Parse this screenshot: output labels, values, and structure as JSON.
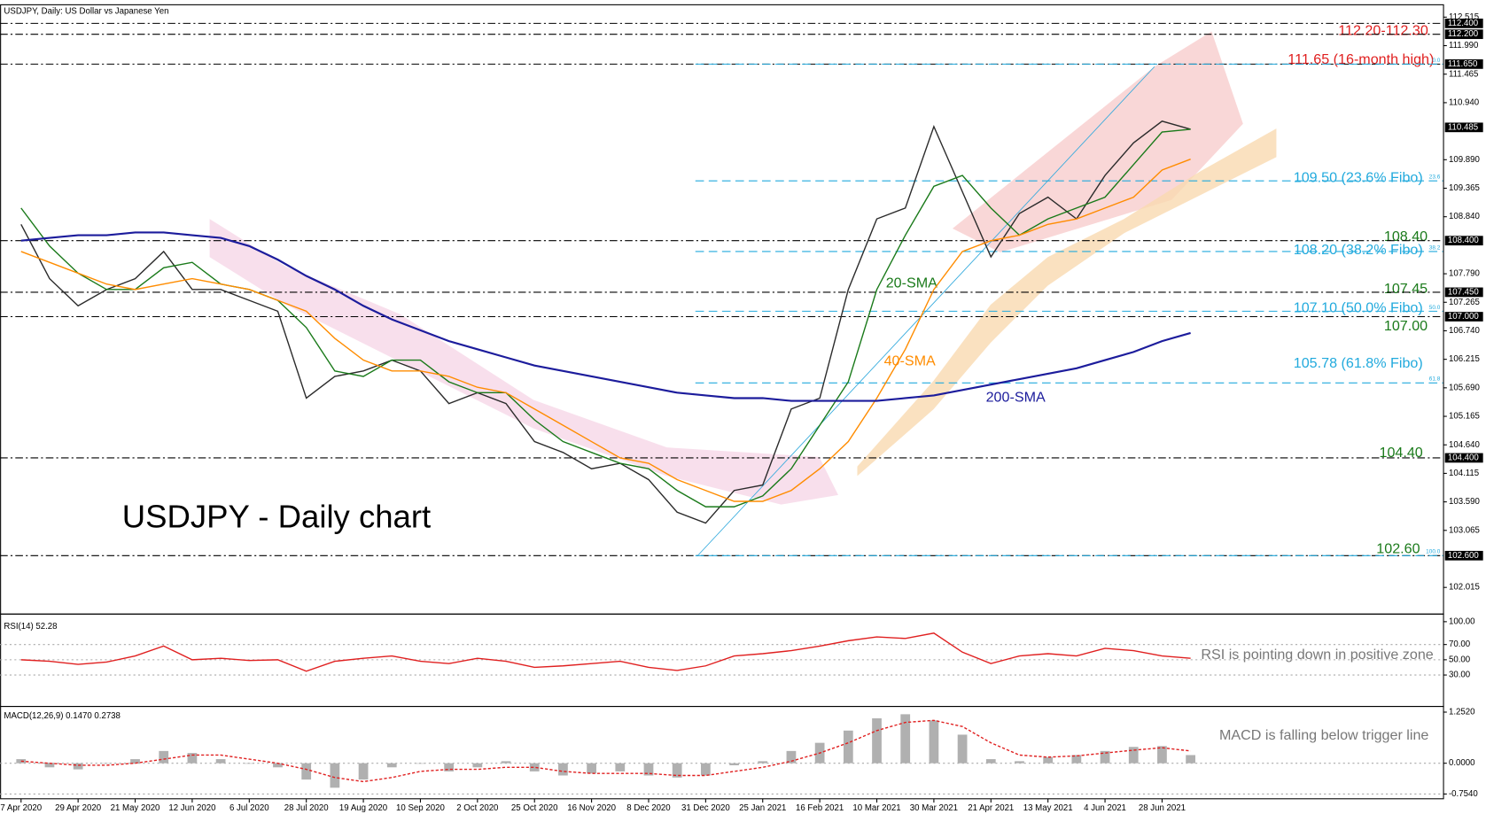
{
  "chart_data": [
    {
      "type": "line",
      "title": "USDJPY, Daily:  US Dollar vs Japanese Yen",
      "categories": [
        "7 Apr 2020",
        null,
        "29 Apr 2020",
        null,
        "21 May 2020",
        null,
        "12 Jun 2020",
        null,
        "6 Jul 2020",
        null,
        "28 Jul 2020",
        null,
        "19 Aug 2020",
        null,
        "10 Sep 2020",
        null,
        "2 Oct 2020",
        null,
        "25 Oct 2020",
        null,
        "16 Nov 2020",
        null,
        "8 Dec 2020",
        null,
        "31 Dec 2020",
        null,
        "25 Jan 2021",
        null,
        "16 Feb 2021",
        null,
        "10 Mar 2021",
        null,
        "30 Mar 2021",
        null,
        "21 Apr 2021",
        null,
        "13 May 2021",
        null,
        "4 Jun 2021",
        null,
        "28 Jun 2021",
        null
      ],
      "series": [
        {
          "color": "#2b2b2b",
          "values": [
            108.7,
            107.7,
            107.2,
            107.5,
            107.7,
            108.2,
            107.5,
            107.5,
            107.3,
            107.1,
            105.5,
            105.9,
            106.0,
            106.2,
            106.0,
            105.4,
            105.6,
            105.4,
            104.7,
            104.5,
            104.2,
            104.3,
            104.0,
            103.4,
            103.2,
            103.8,
            103.9,
            105.3,
            105.5,
            107.5,
            108.8,
            109.0,
            110.5,
            109.3,
            108.1,
            108.9,
            109.2,
            108.8,
            109.6,
            110.2,
            110.6,
            110.45
          ]
        },
        {
          "name": "20-SMA",
          "color": "#1a7a1a",
          "values": [
            109.0,
            108.3,
            107.8,
            107.5,
            107.5,
            107.9,
            108.0,
            107.6,
            107.5,
            107.3,
            106.8,
            106.0,
            105.9,
            106.2,
            106.2,
            105.8,
            105.6,
            105.6,
            105.1,
            104.7,
            104.5,
            104.3,
            104.2,
            103.8,
            103.5,
            103.5,
            103.7,
            104.2,
            105.0,
            105.8,
            107.5,
            108.5,
            109.4,
            109.6,
            109.0,
            108.5,
            108.8,
            109.0,
            109.2,
            109.8,
            110.4,
            110.45
          ]
        },
        {
          "name": "40-SMA",
          "color": "#ff8c00",
          "values": [
            108.2,
            108.0,
            107.8,
            107.6,
            107.5,
            107.6,
            107.7,
            107.6,
            107.5,
            107.3,
            107.1,
            106.6,
            106.2,
            106.0,
            106.0,
            105.9,
            105.7,
            105.6,
            105.3,
            105.0,
            104.7,
            104.4,
            104.3,
            104.0,
            103.8,
            103.6,
            103.6,
            103.8,
            104.2,
            104.7,
            105.5,
            106.4,
            107.5,
            108.2,
            108.4,
            108.5,
            108.7,
            108.8,
            109.0,
            109.2,
            109.7,
            109.9
          ]
        },
        {
          "name": "200-SMA",
          "color": "#1c1c9c",
          "values": [
            108.4,
            108.45,
            108.5,
            108.5,
            108.55,
            108.55,
            108.5,
            108.45,
            108.3,
            108.05,
            107.75,
            107.5,
            107.2,
            106.95,
            106.75,
            106.55,
            106.4,
            106.25,
            106.1,
            106.0,
            105.9,
            105.8,
            105.7,
            105.6,
            105.55,
            105.5,
            105.5,
            105.45,
            105.45,
            105.45,
            105.45,
            105.5,
            105.55,
            105.65,
            105.75,
            105.85,
            105.95,
            106.05,
            106.2,
            106.35,
            106.55,
            106.7
          ]
        }
      ],
      "ylim": [
        102.015,
        112.515
      ],
      "yticks": [
        112.515,
        {
          "value": 111.99,
          "label": "111.990"
        },
        111.465,
        {
          "value": 110.94,
          "label": "110.940"
        },
        {
          "value": 109.89,
          "label": "109.890"
        },
        109.365,
        {
          "value": 108.84,
          "label": "108.840"
        },
        {
          "value": 107.79,
          "label": "107.790"
        },
        107.265,
        {
          "value": 106.74,
          "label": "106.740"
        },
        106.215,
        {
          "value": 105.69,
          "label": "105.690"
        },
        105.165,
        {
          "value": 104.64,
          "label": "104.640"
        },
        104.115,
        {
          "value": 103.59,
          "label": "103.590"
        },
        103.065,
        102.015
      ],
      "levels": [
        112.4,
        112.2,
        111.65,
        108.4,
        107.45,
        107.0,
        104.4,
        102.6
      ],
      "price_labels": [
        {
          "value": 112.4,
          "label": "112.400"
        },
        {
          "value": 112.2,
          "label": "112.200"
        },
        {
          "value": 111.65,
          "label": "111.650"
        },
        {
          "value": 110.485,
          "label": "110.485"
        },
        {
          "value": 108.4,
          "label": "108.400"
        },
        {
          "value": 107.45,
          "label": "107.450"
        },
        {
          "value": 107.0,
          "label": "107.000"
        },
        {
          "value": 104.4,
          "label": "104.400"
        },
        {
          "value": 102.6,
          "label": "102.600"
        }
      ],
      "fibo": [
        {
          "value": 111.65,
          "label": "0.0"
        },
        {
          "value": 109.5,
          "label": "23.6"
        },
        {
          "value": 108.2,
          "label": "38.2"
        },
        {
          "value": 107.1,
          "label": "50.0"
        },
        {
          "value": 105.78,
          "label": "61.8"
        },
        {
          "value": 102.6,
          "label": "100.0"
        }
      ],
      "annotations": [
        "112.20-112.30",
        "111.65 (16-month high)",
        "109.50 (23.6% Fibo)",
        "108.40",
        "108.20 (38.2% Fibo)",
        "107.45",
        "107.10 (50.0% Fibo)",
        "107.00",
        "105.78 (61.8% Fibo)",
        "104.40",
        "102.60",
        "USDJPY - Daily chart"
      ]
    },
    {
      "type": "line",
      "title": "RSI(14) 52.28",
      "series": [
        {
          "color": "#e02020",
          "values": [
            50,
            48,
            44,
            47,
            55,
            68,
            50,
            52,
            49,
            50,
            35,
            48,
            52,
            55,
            48,
            45,
            52,
            48,
            40,
            42,
            45,
            48,
            40,
            36,
            42,
            55,
            58,
            62,
            68,
            75,
            80,
            78,
            85,
            60,
            45,
            55,
            58,
            55,
            65,
            62,
            55,
            52
          ]
        }
      ],
      "ylim": [
        0,
        100
      ],
      "yticks": [
        {
          "value": 100,
          "label": "100.00"
        },
        {
          "value": 70,
          "label": "70.00"
        },
        {
          "value": 50,
          "label": "50.00"
        },
        {
          "value": 30,
          "label": "30.00"
        }
      ],
      "annotations": [
        "RSI is pointing down in positive zone"
      ]
    },
    {
      "type": "bar",
      "title": "MACD(12,26,9) 0.1470 0.2738",
      "series": [
        {
          "color": "#b0b0b0",
          "values": [
            0.1,
            -0.1,
            -0.15,
            0,
            0.1,
            0.3,
            0.25,
            0.1,
            0,
            -0.1,
            -0.4,
            -0.6,
            -0.4,
            -0.1,
            0,
            -0.2,
            -0.1,
            0.05,
            -0.2,
            -0.3,
            -0.25,
            -0.2,
            -0.3,
            -0.35,
            -0.3,
            -0.05,
            0.05,
            0.3,
            0.5,
            0.8,
            1.1,
            1.2,
            1.05,
            0.7,
            0.1,
            0.05,
            0.15,
            0.2,
            0.3,
            0.4,
            0.42,
            0.2
          ]
        },
        {
          "type": "line",
          "color": "#e02020",
          "values": [
            0.05,
            0.0,
            -0.05,
            -0.05,
            0,
            0.1,
            0.2,
            0.2,
            0.1,
            0,
            -0.15,
            -0.35,
            -0.45,
            -0.35,
            -0.2,
            -0.15,
            -0.15,
            -0.1,
            -0.1,
            -0.2,
            -0.25,
            -0.25,
            -0.25,
            -0.3,
            -0.3,
            -0.2,
            -0.1,
            0.05,
            0.25,
            0.5,
            0.8,
            1.0,
            1.05,
            0.9,
            0.5,
            0.2,
            0.15,
            0.18,
            0.25,
            0.32,
            0.38,
            0.3
          ]
        }
      ],
      "ylim": [
        -0.754,
        1.252
      ],
      "yticks": [
        {
          "value": 1.252,
          "label": "1.2520"
        },
        {
          "value": 0,
          "label": "0.0000"
        },
        {
          "value": -0.754,
          "label": "-0.7540"
        }
      ],
      "annotations": [
        "MACD is falling below trigger line"
      ]
    }
  ]
}
